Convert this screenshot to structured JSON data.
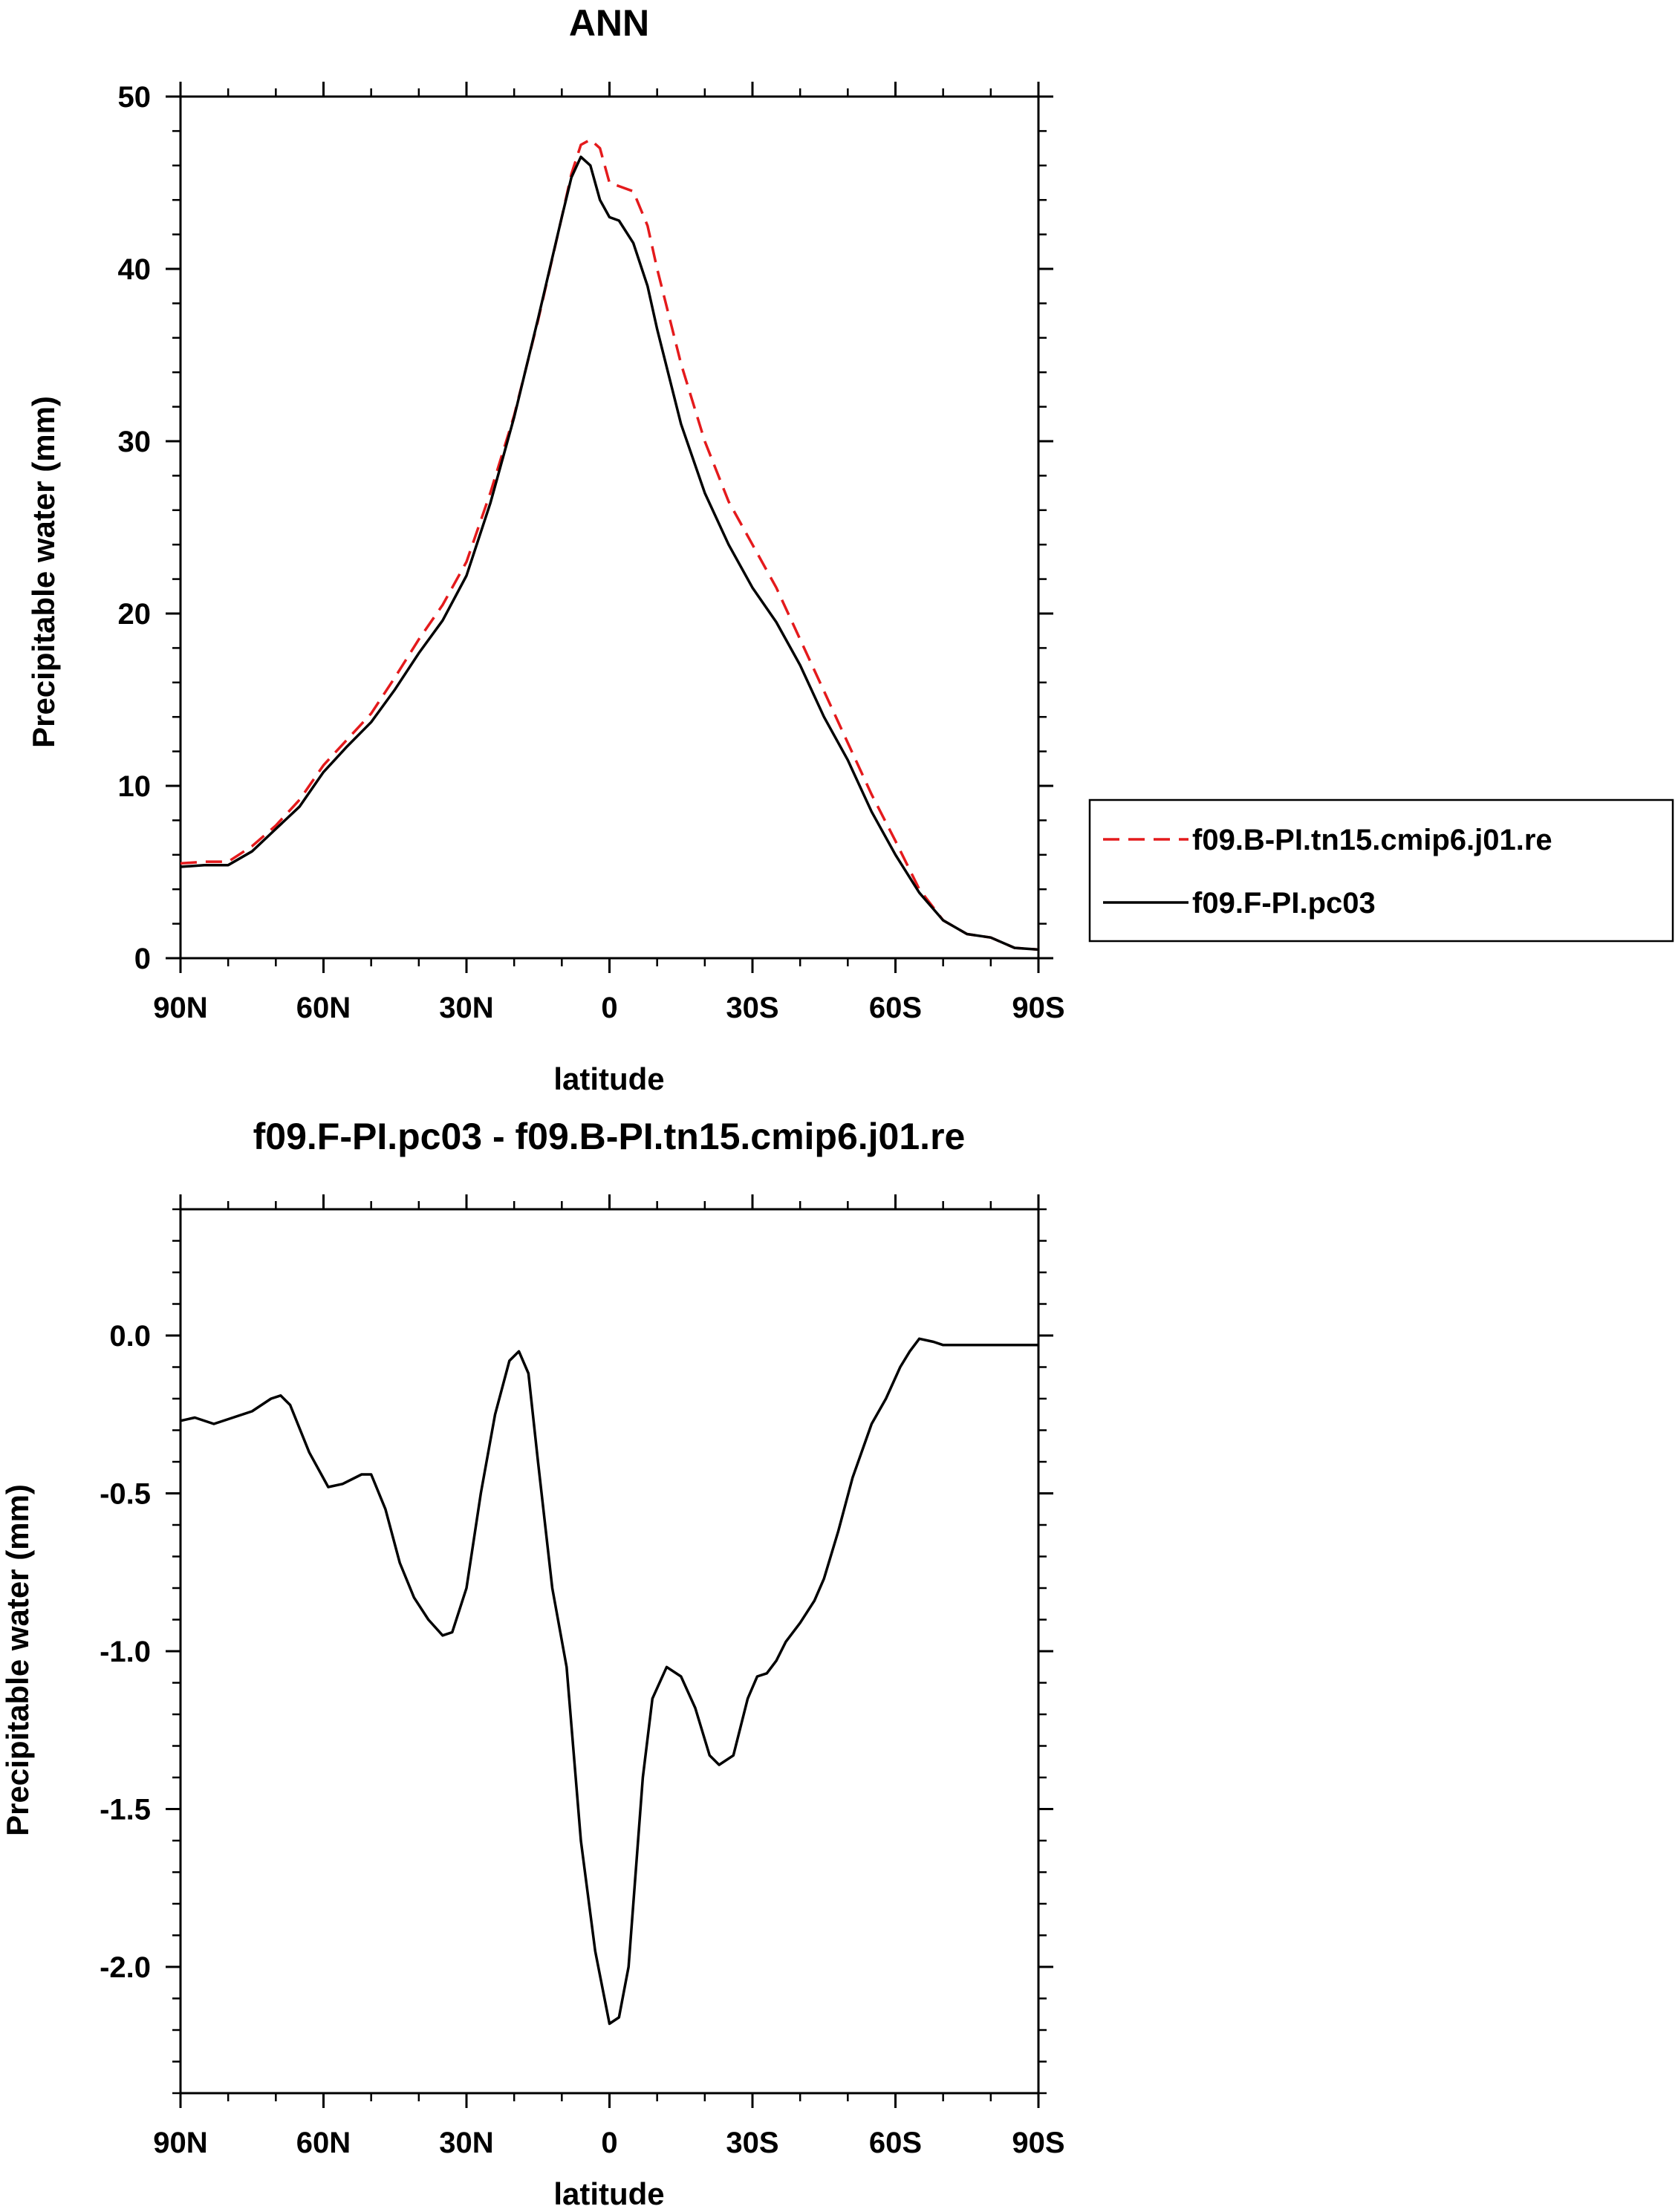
{
  "chart_data": [
    {
      "type": "line",
      "title": "ANN",
      "xlabel": "latitude",
      "ylabel": "Precipitable water (mm)",
      "xlim": [
        90,
        -90
      ],
      "ylim": [
        0,
        50
      ],
      "x_ticks": [
        90,
        60,
        30,
        0,
        -30,
        -60,
        -90
      ],
      "x_tick_labels": [
        "90N",
        "60N",
        "30N",
        "0",
        "30S",
        "60S",
        "90S"
      ],
      "y_ticks": [
        0,
        10,
        20,
        30,
        40,
        50
      ],
      "y_tick_labels": [
        "0",
        "10",
        "20",
        "30",
        "40",
        "50"
      ],
      "grid": false,
      "legend": "right",
      "series": [
        {
          "name": "f09.B-PI.tn15.cmip6.j01.re",
          "color": "#e41a1c",
          "dash": "dashed",
          "x": [
            90,
            85,
            80,
            75,
            70,
            65,
            60,
            55,
            50,
            45,
            40,
            35,
            30,
            25,
            20,
            15,
            10,
            8,
            6,
            4,
            2,
            0,
            -2,
            -5,
            -8,
            -10,
            -15,
            -20,
            -25,
            -30,
            -35,
            -40,
            -45,
            -50,
            -55,
            -60,
            -65,
            -70,
            -75,
            -80,
            -85,
            -90
          ],
          "y": [
            5.5,
            5.6,
            5.6,
            6.5,
            7.7,
            9.2,
            11.2,
            12.7,
            14.2,
            16.3,
            18.5,
            20.5,
            23.0,
            27.0,
            31.5,
            37.0,
            43.0,
            45.5,
            47.2,
            47.5,
            47.0,
            45.0,
            44.8,
            44.5,
            42.5,
            40.0,
            34.5,
            30.0,
            26.5,
            24.0,
            21.5,
            18.5,
            15.5,
            12.5,
            9.5,
            6.8,
            4.0,
            2.2,
            1.4,
            1.2,
            0.6,
            0.5
          ]
        },
        {
          "name": "f09.F-PI.pc03",
          "color": "#000000",
          "dash": "solid",
          "x": [
            90,
            85,
            80,
            75,
            70,
            65,
            60,
            55,
            50,
            45,
            40,
            35,
            30,
            25,
            20,
            15,
            10,
            8,
            6,
            4,
            2,
            0,
            -2,
            -5,
            -8,
            -10,
            -15,
            -20,
            -25,
            -30,
            -35,
            -40,
            -45,
            -50,
            -55,
            -60,
            -65,
            -70,
            -75,
            -80,
            -85,
            -90
          ],
          "y": [
            5.3,
            5.4,
            5.4,
            6.2,
            7.5,
            8.8,
            10.8,
            12.3,
            13.7,
            15.6,
            17.7,
            19.6,
            22.2,
            26.4,
            31.4,
            37.1,
            43.0,
            45.3,
            46.5,
            46.0,
            44.0,
            43.0,
            42.8,
            41.5,
            39.0,
            36.5,
            31.0,
            27.0,
            24.0,
            21.5,
            19.5,
            17.0,
            14.0,
            11.5,
            8.5,
            6.0,
            3.8,
            2.2,
            1.4,
            1.2,
            0.6,
            0.5
          ]
        }
      ]
    },
    {
      "type": "line",
      "title": "f09.F-PI.pc03 - f09.B-PI.tn15.cmip6.j01.re",
      "xlabel": "latitude",
      "ylabel": "Precipitable water (mm)",
      "xlim": [
        90,
        -90
      ],
      "ylim": [
        -2.4,
        0.4
      ],
      "x_ticks": [
        90,
        60,
        30,
        0,
        -30,
        -60,
        -90
      ],
      "x_tick_labels": [
        "90N",
        "60N",
        "30N",
        "0",
        "30S",
        "60S",
        "90S"
      ],
      "y_ticks": [
        0.0,
        -0.5,
        -1.0,
        -1.5,
        -2.0
      ],
      "y_tick_labels": [
        "0.0",
        "-0.5",
        "-1.0",
        "-1.5",
        "-2.0"
      ],
      "grid": false,
      "series": [
        {
          "color": "#000000",
          "dash": "solid",
          "x": [
            90,
            87,
            83,
            79,
            75,
            71,
            69,
            67,
            63,
            59,
            56,
            52,
            50,
            47,
            44,
            41,
            38,
            35,
            33,
            30,
            27,
            24,
            21,
            19,
            17,
            15,
            12,
            9,
            6,
            3,
            0,
            -2,
            -4,
            -5,
            -6,
            -7,
            -9,
            -12,
            -15,
            -18,
            -21,
            -23,
            -26,
            -29,
            -31,
            -33,
            -35,
            -37,
            -40,
            -43,
            -45,
            -48,
            -51,
            -55,
            -58,
            -61,
            -63,
            -65,
            -68,
            -70,
            -72,
            -74,
            -76,
            -78,
            -80,
            -85,
            -90
          ],
          "y": [
            -0.27,
            -0.26,
            -0.28,
            -0.26,
            -0.24,
            -0.2,
            -0.19,
            -0.22,
            -0.37,
            -0.48,
            -0.47,
            -0.44,
            -0.44,
            -0.55,
            -0.72,
            -0.83,
            -0.9,
            -0.95,
            -0.94,
            -0.8,
            -0.5,
            -0.25,
            -0.08,
            -0.05,
            -0.12,
            -0.4,
            -0.8,
            -1.05,
            -1.6,
            -1.95,
            -2.18,
            -2.16,
            -2.0,
            -1.8,
            -1.6,
            -1.4,
            -1.15,
            -1.05,
            -1.08,
            -1.18,
            -1.33,
            -1.36,
            -1.33,
            -1.15,
            -1.08,
            -1.07,
            -1.03,
            -0.97,
            -0.91,
            -0.84,
            -0.77,
            -0.62,
            -0.45,
            -0.28,
            -0.2,
            -0.1,
            -0.05,
            -0.01,
            -0.02,
            -0.03,
            -0.03,
            -0.03,
            -0.03,
            -0.03,
            -0.03,
            -0.03,
            -0.03
          ]
        }
      ]
    }
  ]
}
